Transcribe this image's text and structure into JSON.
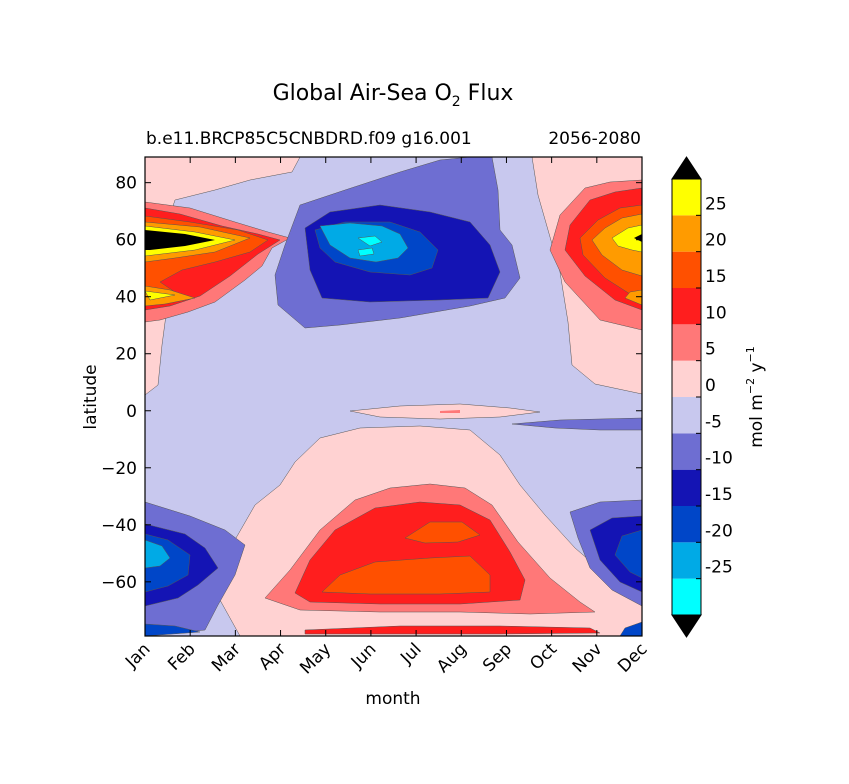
{
  "chart_data": {
    "type": "heatmap",
    "title": "Global Air-Sea O",
    "title_subscript": "2",
    "title_suffix": " Flux",
    "subtitle_left": "b.e11.BRCP85C5CNBDRD.f09 g16.001",
    "subtitle_right": "2056-2080",
    "xlabel": "month",
    "ylabel": "latitude",
    "x_categories": [
      "Jan",
      "Feb",
      "Mar",
      "Apr",
      "May",
      "Jun",
      "Jul",
      "Aug",
      "Sep",
      "Oct",
      "Nov",
      "Dec"
    ],
    "y_ticks": [
      80,
      60,
      40,
      20,
      0,
      -20,
      -40,
      -60
    ],
    "y_tick_labels": [
      "80",
      "60",
      "40",
      "20",
      "0",
      "−20",
      "−40",
      "−60"
    ],
    "ylim": [
      -79,
      89
    ],
    "colorbar": {
      "label_main": "mol m",
      "label_exp1": "−2",
      "label_mid": " y",
      "label_exp2": "−1",
      "levels": [
        -30,
        -25,
        -20,
        -15,
        -10,
        -5,
        0,
        5,
        10,
        15,
        20,
        25,
        30
      ],
      "tick_labels": [
        "-25",
        "-20",
        "-15",
        "-10",
        "-5",
        "0",
        "5",
        "10",
        "15",
        "20",
        "25"
      ],
      "colors": [
        "#00ffff",
        "#00aae6",
        "#0046c8",
        "#1414b4",
        "#6e6ed2",
        "#c8c8ee",
        "#ffd2d2",
        "#ff7878",
        "#ff1e1e",
        "#ff5000",
        "#ff9b00",
        "#ffff00"
      ],
      "under_color": "#000000",
      "over_color": "#000000",
      "extend": "both"
    },
    "regions": [
      {
        "name": "nh-spring-outgassing-west",
        "level": 5,
        "value": 2.5
      },
      {
        "name": "nh-spring-outgassing-west",
        "level": 10,
        "value": 7.5
      },
      {
        "name": "nh-spring-outgassing-west",
        "level": 15,
        "value": 12.5
      },
      {
        "name": "nh-spring-outgassing-west",
        "level": 20,
        "value": 17.5
      },
      {
        "name": "nh-spring-outgassing-west",
        "level": 25,
        "value": 22.5
      },
      {
        "name": "nh-spring-outgassing-west",
        "level": 30,
        "value": 27.5
      },
      {
        "name": "nh-summer-uptake",
        "level": -5,
        "value": -7.5
      },
      {
        "name": "nh-summer-uptake",
        "level": -10,
        "value": -12.5
      },
      {
        "name": "nh-summer-uptake",
        "level": -15,
        "value": -17.5
      },
      {
        "name": "nh-summer-uptake",
        "level": -20,
        "value": -22.5
      },
      {
        "name": "sh-summer-outgassing",
        "level": 5,
        "value": 2.5
      },
      {
        "name": "sh-summer-outgassing",
        "level": 10,
        "value": 7.5
      },
      {
        "name": "sh-summer-outgassing",
        "level": 15,
        "value": 12.5
      },
      {
        "name": "sh-summer-outgassing",
        "level": 20,
        "value": 17.5
      },
      {
        "name": "sh-winter-uptake",
        "level": -5,
        "value": -7.5
      },
      {
        "name": "sh-winter-uptake",
        "level": -10,
        "value": -12.5
      },
      {
        "name": "sh-winter-uptake",
        "level": -15,
        "value": -17.5
      },
      {
        "name": "sh-winter-uptake",
        "level": -20,
        "value": -22.5
      }
    ]
  }
}
